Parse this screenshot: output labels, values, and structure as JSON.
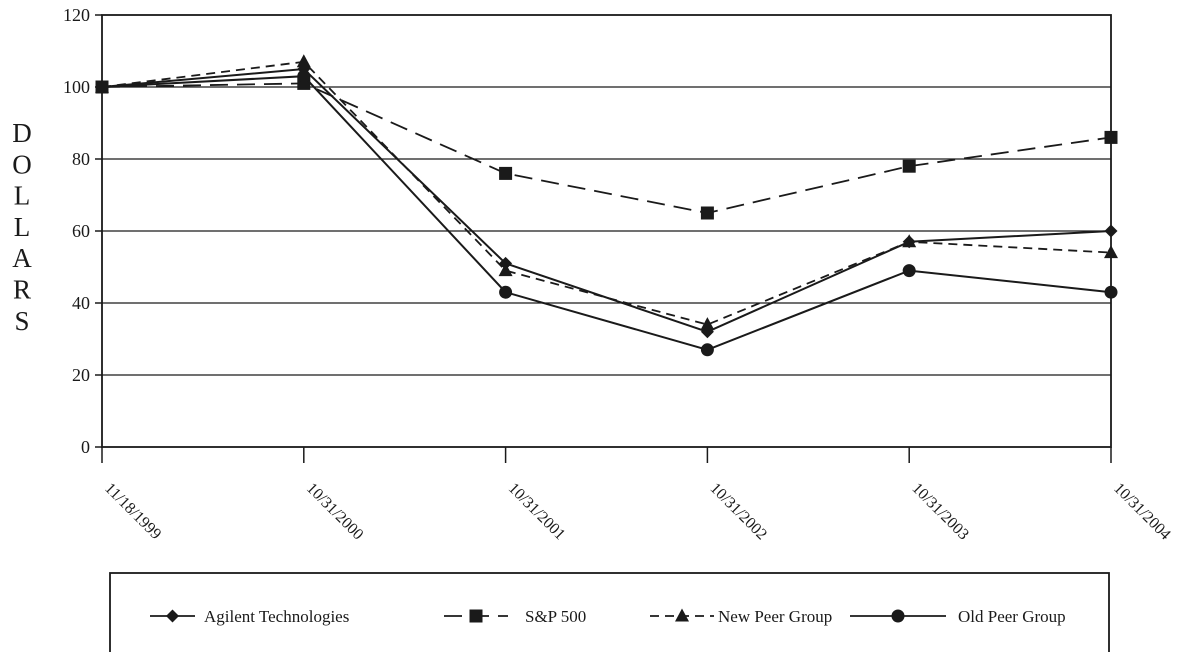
{
  "chart_data": {
    "type": "line",
    "title": "",
    "ylabel": "DOLLARS",
    "xlabel": "",
    "categories": [
      "11/18/1999",
      "10/31/2000",
      "10/31/2001",
      "10/31/2002",
      "10/31/2003",
      "10/31/2004"
    ],
    "yticks": [
      "0",
      "20",
      "40",
      "60",
      "80",
      "100",
      "120"
    ],
    "ylim": [
      0,
      120
    ],
    "grid": "horizontal",
    "legend_placement": "bottom",
    "series": [
      {
        "name": "Agilent Technologies",
        "marker": "diamond",
        "dash": "solid",
        "color": "#1a1a1a",
        "values": [
          100,
          105,
          51,
          32,
          57,
          60
        ]
      },
      {
        "name": "S&P 500",
        "marker": "square",
        "dash": "long",
        "color": "#1a1a1a",
        "values": [
          100,
          101,
          76,
          65,
          78,
          86
        ]
      },
      {
        "name": "New Peer Group",
        "marker": "triangle",
        "dash": "short",
        "color": "#1a1a1a",
        "values": [
          100,
          107,
          49,
          34,
          57,
          54
        ]
      },
      {
        "name": "Old Peer Group",
        "marker": "circle",
        "dash": "solid",
        "color": "#1a1a1a",
        "values": [
          100,
          103,
          43,
          27,
          49,
          43
        ]
      }
    ]
  }
}
